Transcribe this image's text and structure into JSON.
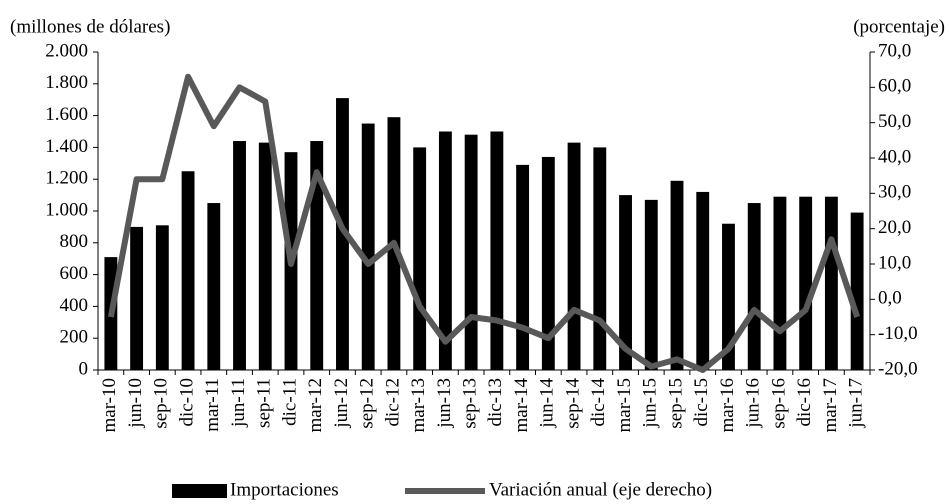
{
  "chart_data": {
    "type": "bar",
    "left_axis_label": "(millones  de dólares)",
    "right_axis_label": "(porcentaje)",
    "categories": [
      "mar-10",
      "jun-10",
      "sep-10",
      "dic-10",
      "mar-11",
      "jun-11",
      "sep-11",
      "dic-11",
      "mar-12",
      "jun-12",
      "sep-12",
      "dic-12",
      "mar-13",
      "jun-13",
      "sep-13",
      "dic-13",
      "mar-14",
      "jun-14",
      "sep-14",
      "dic-14",
      "mar-15",
      "jun-15",
      "sep-15",
      "dic-15",
      "mar-16",
      "jun-16",
      "sep-16",
      "dic-16",
      "mar-17",
      "jun-17"
    ],
    "series": [
      {
        "name": "Importaciones",
        "type": "bar",
        "color": "#000000",
        "values": [
          710,
          900,
          910,
          1250,
          1050,
          1440,
          1430,
          1370,
          1440,
          1710,
          1550,
          1590,
          1400,
          1500,
          1480,
          1500,
          1290,
          1340,
          1430,
          1400,
          1100,
          1070,
          1190,
          1120,
          920,
          1050,
          1090,
          1090,
          1090,
          990
        ]
      },
      {
        "name": "Variación anual (eje derecho)",
        "type": "line",
        "axis": "y2",
        "color": "#595959",
        "values": [
          -5,
          34,
          34,
          63,
          49,
          60,
          56,
          10,
          36,
          20,
          10,
          16,
          -2,
          -12,
          -5,
          -6,
          -8,
          -11,
          -3,
          -6,
          -14,
          -19,
          -17,
          -20,
          -14,
          -3,
          -9,
          -3,
          17,
          -5
        ]
      }
    ],
    "ylim": [
      0,
      2000
    ],
    "yticks": [
      0,
      200,
      400,
      600,
      800,
      {
        "value": 1000,
        "label": "1.000"
      },
      {
        "value": 1200,
        "label": "1.200"
      },
      {
        "value": 1400,
        "label": "1.400"
      },
      {
        "value": 1600,
        "label": "1.600"
      },
      {
        "value": 1800,
        "label": "1.800"
      },
      {
        "value": 2000,
        "label": "2.000"
      }
    ],
    "y2lim": [
      -20,
      70
    ],
    "y2ticks": [
      {
        "value": -20,
        "label": "-20,0"
      },
      {
        "value": -10,
        "label": "-10,0"
      },
      {
        "value": 0,
        "label": "0,0"
      },
      {
        "value": 10,
        "label": "10,0"
      },
      {
        "value": 20,
        "label": "20,0"
      },
      {
        "value": 30,
        "label": "30,0"
      },
      {
        "value": 40,
        "label": "40,0"
      },
      {
        "value": 50,
        "label": "50,0"
      },
      {
        "value": 60,
        "label": "60,0"
      },
      {
        "value": 70,
        "label": "70,0"
      }
    ],
    "legend": "bottom"
  }
}
